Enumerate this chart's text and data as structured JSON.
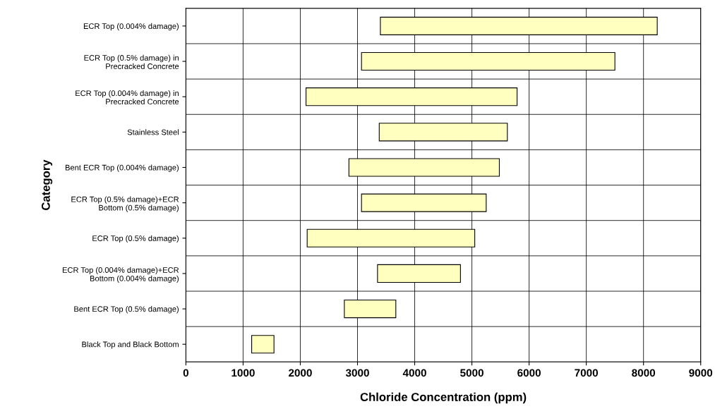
{
  "chart_data": {
    "type": "bar",
    "orientation": "horizontal",
    "xlabel": "Chloride Concentration (ppm)",
    "ylabel": "Category",
    "categories": [
      "ECR Top (0.004% damage)",
      "ECR Top (0.5% damage) in\nPrecracked Concrete",
      "ECR Top (0.004% damage) in\nPrecracked Concrete",
      "Stainless Steel",
      "Bent ECR Top (0.004% damage)",
      "ECR Top (0.5% damage)+ECR\nBottom (0.5% damage)",
      "ECR Top (0.5% damage)",
      "ECR Top (0.004% damage)+ECR\nBottom (0.004% damage)",
      "Bent ECR Top (0.5% damage)",
      "Black Top and Black Bottom"
    ],
    "base": [
      3400,
      3070,
      2100,
      3380,
      2850,
      3070,
      2120,
      3350,
      2770,
      1150
    ],
    "values": [
      4840,
      4430,
      3690,
      2240,
      2630,
      2180,
      2930,
      1450,
      900,
      390
    ],
    "color": "#ffffc0",
    "xlim": [
      0,
      9000
    ],
    "xticks": [
      0,
      1000,
      2000,
      3000,
      4000,
      5000,
      6000,
      7000,
      8000,
      9000
    ],
    "grid": true
  }
}
